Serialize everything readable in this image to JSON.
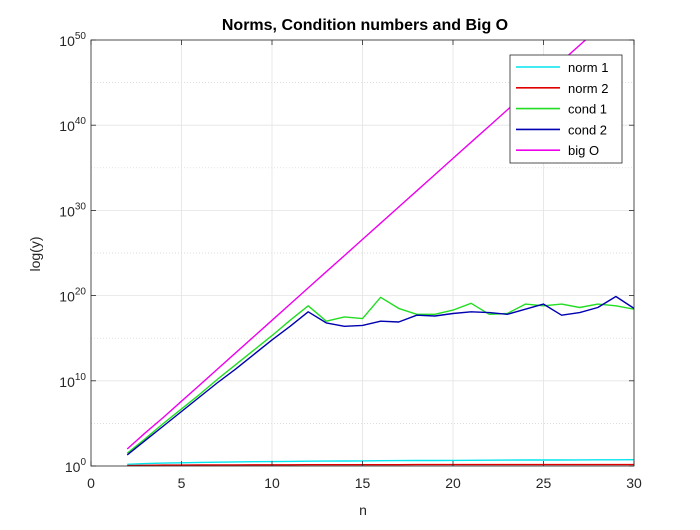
{
  "chart_data": {
    "type": "line",
    "title": "Norms, Condition numbers and Big O",
    "xlabel": "n",
    "ylabel": "log(y)",
    "xlim": [
      0,
      30
    ],
    "ylim_exponent": [
      0,
      50
    ],
    "y_scale": "log",
    "y_tick_base": "10",
    "grid": true,
    "minor_grid_y": true,
    "legend_position": "top-right",
    "x_ticks": [
      0,
      5,
      10,
      15,
      20,
      25,
      30
    ],
    "y_tick_exponents": [
      0,
      10,
      20,
      30,
      40,
      50
    ],
    "x": [
      2,
      3,
      4,
      5,
      6,
      7,
      8,
      9,
      10,
      11,
      12,
      13,
      14,
      15,
      16,
      17,
      18,
      19,
      20,
      21,
      22,
      23,
      24,
      25,
      26,
      27,
      28,
      29,
      30
    ],
    "y_unit_note": "values are log10(y)",
    "series": [
      {
        "name": "norm 1",
        "color": "#00e5ee",
        "log10_values": [
          0.2,
          0.28,
          0.34,
          0.38,
          0.42,
          0.45,
          0.48,
          0.5,
          0.52,
          0.54,
          0.56,
          0.58,
          0.59,
          0.6,
          0.62,
          0.63,
          0.64,
          0.65,
          0.66,
          0.67,
          0.68,
          0.69,
          0.7,
          0.7,
          0.71,
          0.72,
          0.73,
          0.73,
          0.74
        ]
      },
      {
        "name": "norm 2",
        "color": "#e00000",
        "log10_values": [
          0.05,
          0.08,
          0.1,
          0.11,
          0.12,
          0.13,
          0.13,
          0.14,
          0.14,
          0.14,
          0.15,
          0.15,
          0.15,
          0.15,
          0.15,
          0.15,
          0.16,
          0.16,
          0.16,
          0.16,
          0.16,
          0.16,
          0.16,
          0.16,
          0.16,
          0.16,
          0.16,
          0.16,
          0.16
        ]
      },
      {
        "name": "cond 1",
        "color": "#22dd22",
        "log10_values": [
          1.5,
          3.2,
          5.0,
          6.7,
          8.4,
          10.2,
          11.9,
          13.6,
          15.3,
          17.1,
          18.8,
          17.0,
          17.5,
          17.3,
          19.8,
          18.5,
          17.8,
          17.8,
          18.3,
          19.1,
          17.8,
          17.9,
          19.0,
          18.8,
          19.0,
          18.6,
          19.0,
          18.8,
          18.4
        ]
      },
      {
        "name": "cond 2",
        "color": "#0000b0",
        "log10_values": [
          1.3,
          3.0,
          4.7,
          6.4,
          8.1,
          9.8,
          11.4,
          13.1,
          14.8,
          16.4,
          18.1,
          16.8,
          16.4,
          16.5,
          17.0,
          16.9,
          17.7,
          17.6,
          17.9,
          18.1,
          18.0,
          17.8,
          18.4,
          19.0,
          17.7,
          18.0,
          18.6,
          19.9,
          18.5
        ]
      },
      {
        "name": "big O",
        "color": "#ee00ee",
        "log10_values": [
          2.0,
          3.9,
          5.7,
          7.6,
          9.5,
          11.4,
          13.3,
          15.2,
          17.1,
          19.0,
          20.9,
          22.8,
          24.7,
          26.6,
          28.5,
          30.4,
          32.3,
          34.2,
          36.1,
          38.0,
          39.9,
          41.8,
          43.7,
          45.6,
          47.5,
          49.4,
          51.3,
          53.2,
          55.1
        ]
      }
    ]
  }
}
